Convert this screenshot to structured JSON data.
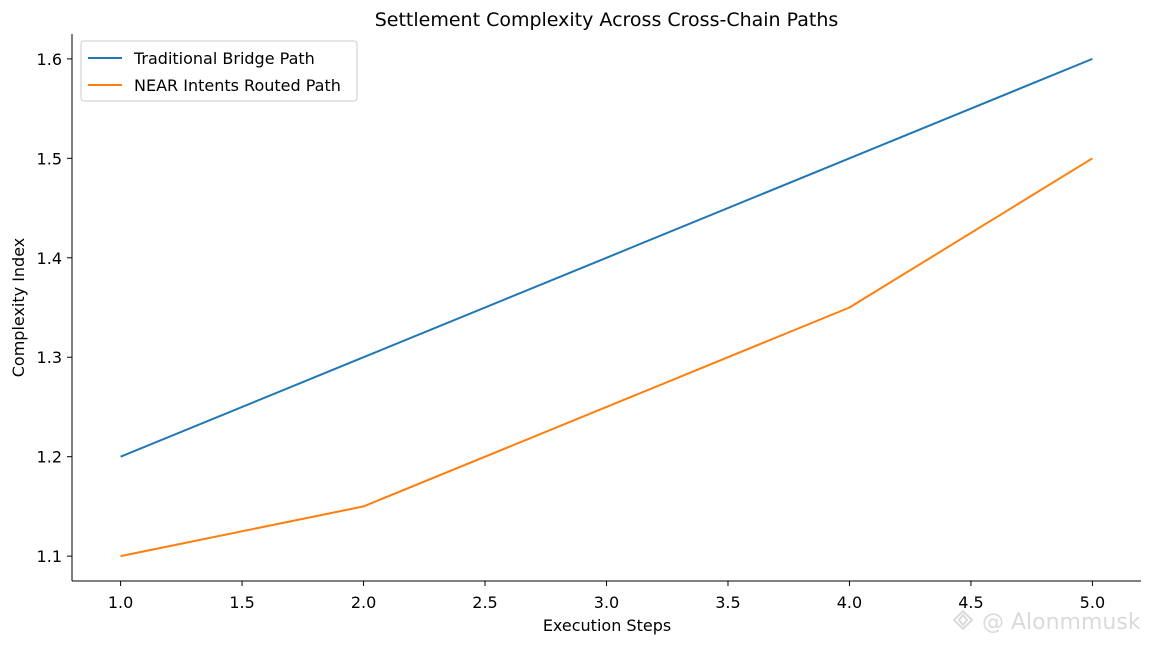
{
  "chart_data": {
    "type": "line",
    "title": "Settlement Complexity Across Cross-Chain Paths",
    "xlabel": "Execution Steps",
    "ylabel": "Complexity Index",
    "xlim": [
      0.8,
      5.2
    ],
    "ylim": [
      1.075,
      1.625
    ],
    "xticks": [
      1.0,
      1.5,
      2.0,
      2.5,
      3.0,
      3.5,
      4.0,
      4.5,
      5.0
    ],
    "xtick_labels": [
      "1.0",
      "1.5",
      "2.0",
      "2.5",
      "3.0",
      "3.5",
      "4.0",
      "4.5",
      "5.0"
    ],
    "yticks": [
      1.1,
      1.2,
      1.3,
      1.4,
      1.5,
      1.6
    ],
    "ytick_labels": [
      "1.1",
      "1.2",
      "1.3",
      "1.4",
      "1.5",
      "1.6"
    ],
    "grid": false,
    "legend_position": "top-left",
    "x": [
      1,
      2,
      3,
      4,
      5
    ],
    "series": [
      {
        "name": "Traditional Bridge Path",
        "color": "#1f77b4",
        "values": [
          1.2,
          1.3,
          1.4,
          1.5,
          1.6
        ]
      },
      {
        "name": "NEAR Intents Routed Path",
        "color": "#ff7f0e",
        "values": [
          1.1,
          1.15,
          1.25,
          1.35,
          1.5
        ]
      }
    ]
  },
  "watermark": {
    "text": "@ Alonmmusk",
    "icon": "binance-diamond-icon"
  }
}
